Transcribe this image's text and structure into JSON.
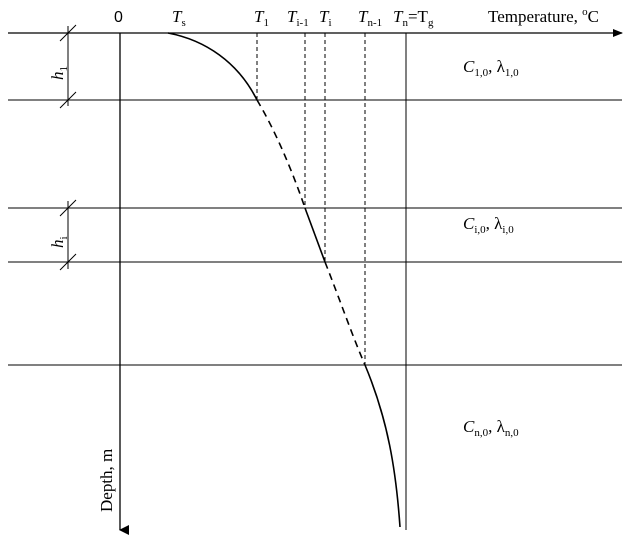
{
  "axes": {
    "x_origin": "0",
    "x_title": "Temperature, ",
    "x_unit_sup": "o",
    "x_unit": "C",
    "y_title": "Depth, m"
  },
  "temperature_labels": [
    {
      "main": "T",
      "sub": "s"
    },
    {
      "main": "T",
      "sub": "1"
    },
    {
      "main": "T",
      "sub": "i-1"
    },
    {
      "main": "T",
      "sub": "i"
    },
    {
      "main": "T",
      "sub": "n-1"
    },
    {
      "main": "T",
      "sub": "n",
      "tail": "=T",
      "tail_sub": "g"
    }
  ],
  "thickness_labels": [
    {
      "main": "h",
      "sub": "1"
    },
    {
      "main": "h",
      "sub": "i"
    }
  ],
  "layer_labels": [
    {
      "c_sub": "1,0",
      "lambda_sub": "1,0"
    },
    {
      "c_sub": "i,0",
      "lambda_sub": "i,0"
    },
    {
      "c_sub": "n,0",
      "lambda_sub": "n,0"
    }
  ],
  "symbols": {
    "c": "C",
    "lambda": "λ",
    "sep": ", "
  }
}
